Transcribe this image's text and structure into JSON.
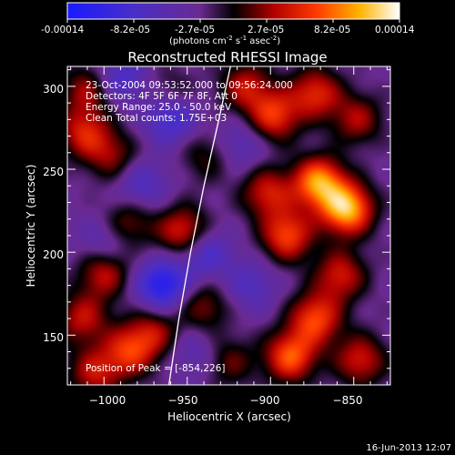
{
  "chart_data": {
    "type": "heatmap",
    "title": "Reconstructed RHESSI Image",
    "colorbar": {
      "ticks": [
        "-0.00014",
        "-8.2e-05",
        "-2.7e-05",
        "2.7e-05",
        "8.2e-05",
        "0.00014"
      ],
      "unit_main": "(photons cm",
      "unit_exp1": "-2",
      "unit_mid": " s",
      "unit_exp2": "-1",
      "unit_end": " asec",
      "unit_exp3": "-2",
      "unit_close": ")",
      "range": [
        -0.00014,
        0.00014
      ]
    },
    "xlabel": "Heliocentric X (arcsec)",
    "ylabel": "Heliocentric Y (arcsec)",
    "xlim": [
      -1022,
      -828
    ],
    "ylim": [
      120,
      312
    ],
    "x_ticks": [
      -1000,
      -950,
      -900,
      -850
    ],
    "y_ticks": [
      150,
      200,
      250,
      300
    ],
    "x_tick_labels": [
      "−1000",
      "−950",
      "−900",
      "−850"
    ],
    "y_tick_labels": [
      "150",
      "200",
      "250",
      "300"
    ],
    "limb_curve": [
      [
        -961,
        120
      ],
      [
        -955,
        160
      ],
      [
        -948,
        200
      ],
      [
        -940,
        240
      ],
      [
        -931,
        280
      ],
      [
        -924,
        312
      ]
    ],
    "annotations": [
      "23-Oct-2004 09:53:52.000 to 09:56:24.000",
      "Detectors: 4F 5F 6F 7F 8F, Att 0",
      "Energy Range: 25.0 - 50.0 keV",
      "Clean     Total counts: 1.75E+03"
    ],
    "peak_label": "Position of Peak = [-854,226]",
    "peak": [
      -854,
      226
    ],
    "sources": [
      {
        "x": -854,
        "y": 226,
        "amp": 1.0
      },
      {
        "x": -871,
        "y": 242,
        "amp": 0.9
      },
      {
        "x": -890,
        "y": 210,
        "amp": 0.7
      },
      {
        "x": -902,
        "y": 236,
        "amp": 0.55
      },
      {
        "x": -898,
        "y": 282,
        "amp": 0.65
      },
      {
        "x": -873,
        "y": 296,
        "amp": 0.6
      },
      {
        "x": -915,
        "y": 300,
        "amp": 0.5
      },
      {
        "x": -858,
        "y": 186,
        "amp": 0.55
      },
      {
        "x": -873,
        "y": 160,
        "amp": 0.7
      },
      {
        "x": -888,
        "y": 137,
        "amp": 0.75
      },
      {
        "x": -846,
        "y": 135,
        "amp": 0.55
      },
      {
        "x": -848,
        "y": 280,
        "amp": 0.45
      },
      {
        "x": -1012,
        "y": 272,
        "amp": 0.55
      },
      {
        "x": -1010,
        "y": 298,
        "amp": 0.45
      },
      {
        "x": -995,
        "y": 258,
        "amp": 0.4
      },
      {
        "x": -1000,
        "y": 188,
        "amp": 0.55
      },
      {
        "x": -1013,
        "y": 160,
        "amp": 0.5
      },
      {
        "x": -952,
        "y": 212,
        "amp": 0.65
      },
      {
        "x": -985,
        "y": 218,
        "amp": 0.4
      },
      {
        "x": -970,
        "y": 152,
        "amp": 0.45
      },
      {
        "x": -940,
        "y": 167,
        "amp": 0.4
      },
      {
        "x": -985,
        "y": 140,
        "amp": 0.6
      },
      {
        "x": -1006,
        "y": 127,
        "amp": 0.5
      },
      {
        "x": -925,
        "y": 134,
        "amp": 0.35
      },
      {
        "x": -960,
        "y": 295,
        "amp": 0.3
      },
      {
        "x": -938,
        "y": 258,
        "amp": 0.3
      },
      {
        "x": -965,
        "y": 180,
        "amp": -0.7
      },
      {
        "x": -960,
        "y": 282,
        "amp": -0.55
      },
      {
        "x": -940,
        "y": 200,
        "amp": -0.45
      },
      {
        "x": -990,
        "y": 305,
        "amp": -0.4
      },
      {
        "x": -978,
        "y": 240,
        "amp": -0.35
      },
      {
        "x": -918,
        "y": 265,
        "amp": -0.3
      },
      {
        "x": -1000,
        "y": 205,
        "amp": -0.3
      },
      {
        "x": -912,
        "y": 180,
        "amp": -0.3
      },
      {
        "x": -945,
        "y": 140,
        "amp": -0.25
      }
    ]
  },
  "footer_date": "16-Jun-2013 12:07"
}
